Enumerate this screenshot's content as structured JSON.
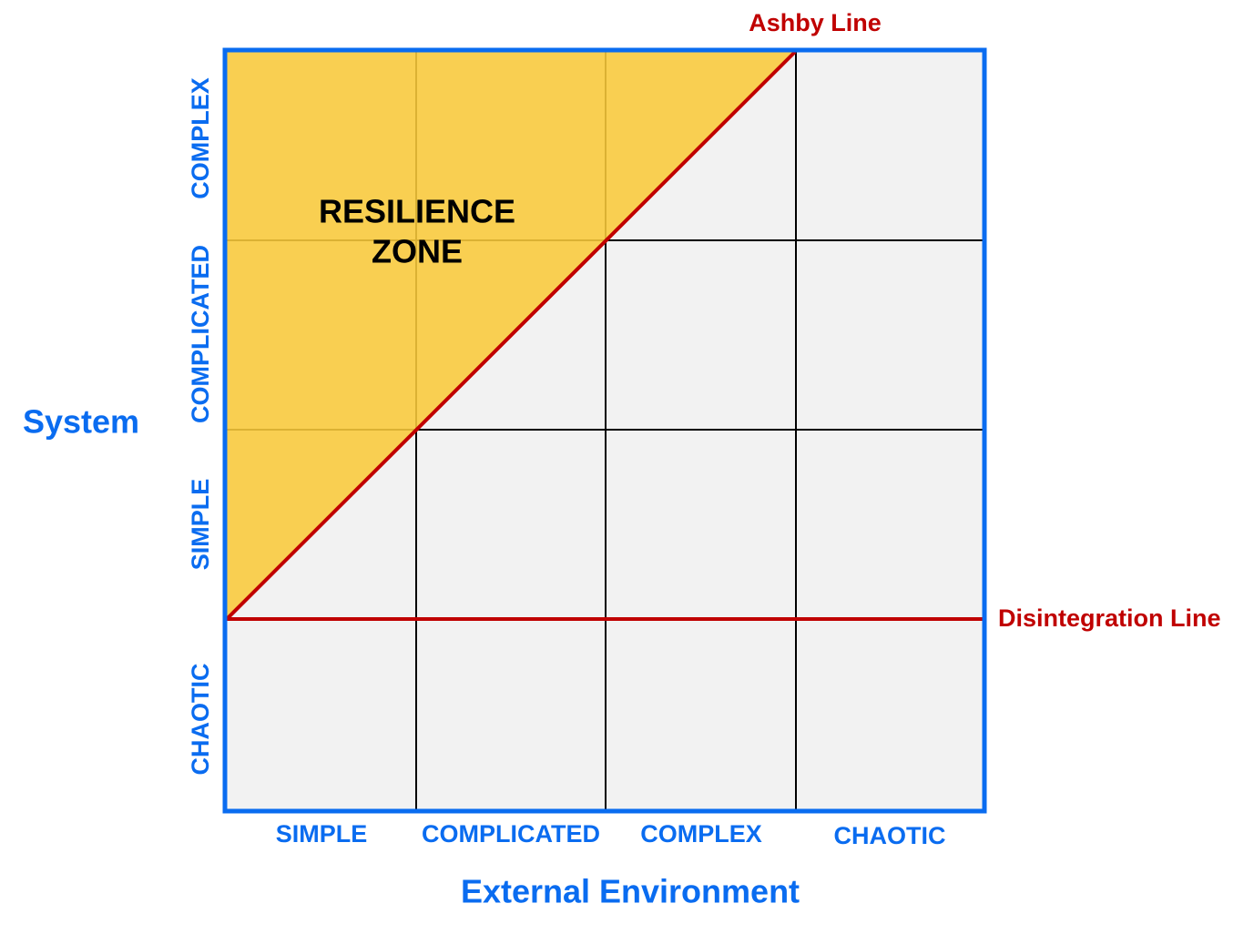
{
  "system_axis": {
    "title": "System",
    "levels": [
      "COMPLEX",
      "COMPLICATED",
      "SIMPLE",
      "CHAOTIC"
    ]
  },
  "environment_axis": {
    "title": "External Environment",
    "levels": [
      "SIMPLE",
      "COMPLICATED",
      "COMPLEX",
      "CHAOTIC"
    ]
  },
  "zone": {
    "lines": [
      "RESILIENCE",
      "ZONE"
    ]
  },
  "lines": {
    "ashby": "Ashby Line",
    "disintegration": "Disintegration Line"
  }
}
